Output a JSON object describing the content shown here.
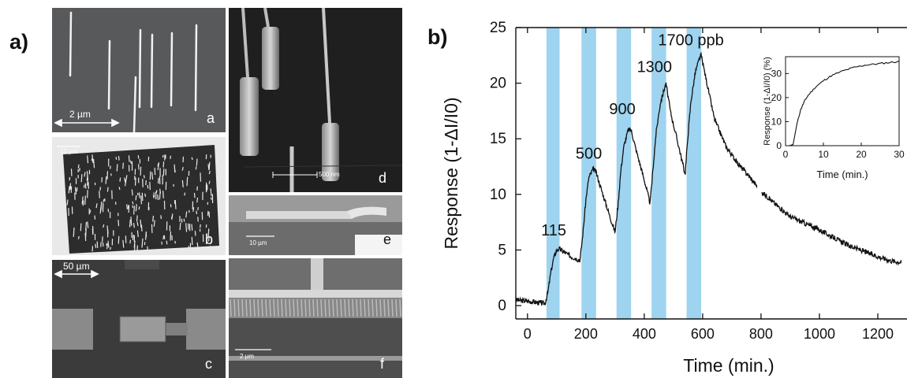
{
  "panel_a": {
    "label": "a)",
    "subpanels": [
      {
        "letter": "a",
        "scale": "2 µm"
      },
      {
        "letter": "b",
        "scale": "10 µm"
      },
      {
        "letter": "c",
        "scale": "50 µm"
      },
      {
        "letter": "d",
        "scale": "500 nm"
      },
      {
        "letter": "e",
        "scale": "10 µm"
      },
      {
        "letter": "f",
        "scale": "2 µm"
      }
    ]
  },
  "panel_b": {
    "label": "b)"
  },
  "chart_data": [
    {
      "type": "line",
      "xlabel": "Time (min.)",
      "ylabel": "Response (1-ΔI/I0)",
      "xlim": [
        -40,
        1300
      ],
      "ylim": [
        -1.2,
        25
      ],
      "xticks": [
        0,
        200,
        400,
        600,
        800,
        1000,
        1200
      ],
      "yticks": [
        0,
        5,
        10,
        15,
        20,
        25
      ],
      "exposure_bands": [
        [
          65,
          110
        ],
        [
          185,
          235
        ],
        [
          305,
          355
        ],
        [
          425,
          475
        ],
        [
          545,
          595
        ]
      ],
      "band_color": "#9ed4ef",
      "annotations": [
        "115",
        "500",
        "900",
        "1300",
        "1700 ppb"
      ],
      "annotation_points": [
        [
          90,
          6.3
        ],
        [
          210,
          13.2
        ],
        [
          325,
          17.2
        ],
        [
          435,
          21.0
        ],
        [
          560,
          23.4
        ]
      ],
      "series": [
        {
          "x": [
            -40,
            0,
            30,
            60,
            70,
            80,
            90,
            100,
            110,
            120,
            150,
            180,
            190,
            200,
            210,
            225,
            235,
            250,
            280,
            300,
            310,
            320,
            330,
            345,
            355,
            370,
            400,
            420,
            430,
            440,
            455,
            470,
            475,
            490,
            520,
            540,
            550,
            560,
            575,
            590,
            595,
            610,
            640,
            680,
            720,
            760,
            800,
            850,
            900,
            950,
            1000,
            1050,
            1100,
            1150,
            1200,
            1250,
            1280
          ],
          "y": [
            0.5,
            0.4,
            0.3,
            0.2,
            1.2,
            3.0,
            4.3,
            5.0,
            5.1,
            4.9,
            4.4,
            4.1,
            6.5,
            9.5,
            11.5,
            12.3,
            12.0,
            10.7,
            8.2,
            6.6,
            9.0,
            12.2,
            14.3,
            15.8,
            15.8,
            14.2,
            11.3,
            9.2,
            12.3,
            15.4,
            18.2,
            19.6,
            19.9,
            17.4,
            14.1,
            11.8,
            15.4,
            18.4,
            21.0,
            22.3,
            22.5,
            20.6,
            16.8,
            14.3,
            12.8,
            11.6,
            10.3,
            9.1,
            8.0,
            7.4,
            6.8,
            6.1,
            5.4,
            4.9,
            4.4,
            4.0,
            3.9
          ]
        }
      ]
    },
    {
      "type": "line",
      "xlabel": "Time (min.)",
      "ylabel": "Response (1-ΔI/I0) (%)",
      "xlim": [
        0,
        30
      ],
      "ylim": [
        0,
        37
      ],
      "xticks": [
        0,
        10,
        20,
        30
      ],
      "yticks": [
        0,
        10,
        20,
        30
      ],
      "series": [
        {
          "x": [
            0,
            1,
            2,
            3,
            4,
            5,
            6,
            8,
            10,
            12,
            15,
            18,
            21,
            24,
            27,
            30
          ],
          "y": [
            0,
            0,
            0.5,
            9,
            15,
            18.5,
            21,
            24.5,
            27,
            29,
            31,
            32.5,
            33.5,
            34,
            34.5,
            35
          ]
        }
      ]
    }
  ]
}
